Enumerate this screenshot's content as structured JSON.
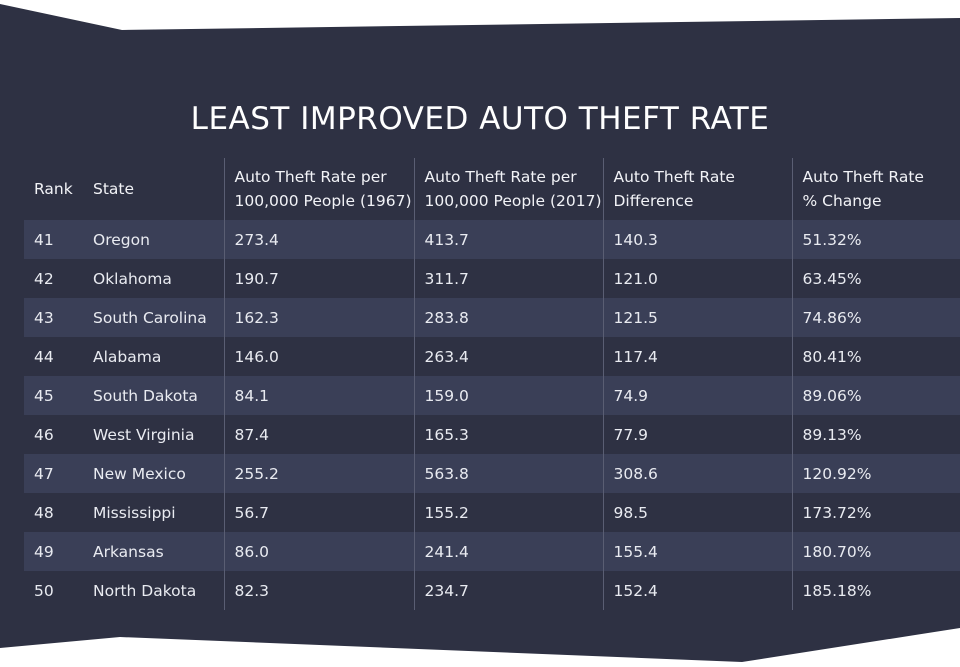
{
  "title": "LEAST IMPROVED AUTO THEFT RATE",
  "colors": {
    "panel": "#2e3143",
    "stripe": "#3a3f57",
    "text": "#ffffff",
    "divider": "#5a5e73"
  },
  "table": {
    "headers": {
      "rank": "Rank",
      "state": "State",
      "rate_1967_line1": "Auto Theft Rate per",
      "rate_1967_line2": "100,000 People (1967)",
      "rate_2017_line1": "Auto Theft Rate per",
      "rate_2017_line2": "100,000 People (2017)",
      "difference_line1": "Auto Theft Rate",
      "difference_line2": "Difference",
      "pct_line1": "Auto Theft Rate",
      "pct_line2": "% Change"
    },
    "rows": [
      {
        "rank": "41",
        "state": "Oregon",
        "rate_1967": "273.4",
        "rate_2017": "413.7",
        "difference": "140.3",
        "pct_change": "51.32%"
      },
      {
        "rank": "42",
        "state": "Oklahoma",
        "rate_1967": "190.7",
        "rate_2017": "311.7",
        "difference": "121.0",
        "pct_change": "63.45%"
      },
      {
        "rank": "43",
        "state": "South Carolina",
        "rate_1967": "162.3",
        "rate_2017": "283.8",
        "difference": "121.5",
        "pct_change": "74.86%"
      },
      {
        "rank": "44",
        "state": "Alabama",
        "rate_1967": "146.0",
        "rate_2017": "263.4",
        "difference": "117.4",
        "pct_change": "80.41%"
      },
      {
        "rank": "45",
        "state": "South Dakota",
        "rate_1967": "84.1",
        "rate_2017": "159.0",
        "difference": "74.9",
        "pct_change": "89.06%"
      },
      {
        "rank": "46",
        "state": "West Virginia",
        "rate_1967": "87.4",
        "rate_2017": "165.3",
        "difference": "77.9",
        "pct_change": "89.13%"
      },
      {
        "rank": "47",
        "state": "New Mexico",
        "rate_1967": "255.2",
        "rate_2017": "563.8",
        "difference": "308.6",
        "pct_change": "120.92%"
      },
      {
        "rank": "48",
        "state": "Mississippi",
        "rate_1967": "56.7",
        "rate_2017": "155.2",
        "difference": "98.5",
        "pct_change": "173.72%"
      },
      {
        "rank": "49",
        "state": "Arkansas",
        "rate_1967": "86.0",
        "rate_2017": "241.4",
        "difference": "155.4",
        "pct_change": "180.70%"
      },
      {
        "rank": "50",
        "state": "North Dakota",
        "rate_1967": "82.3",
        "rate_2017": "234.7",
        "difference": "152.4",
        "pct_change": "185.18%"
      }
    ]
  },
  "chart_data": {
    "type": "table",
    "title": "LEAST IMPROVED AUTO THEFT RATE",
    "columns": [
      "Rank",
      "State",
      "Auto Theft Rate per 100,000 People (1967)",
      "Auto Theft Rate per 100,000 People (2017)",
      "Auto Theft Rate Difference",
      "Auto Theft Rate % Change"
    ],
    "rows": [
      [
        41,
        "Oregon",
        273.4,
        413.7,
        140.3,
        "51.32%"
      ],
      [
        42,
        "Oklahoma",
        190.7,
        311.7,
        121.0,
        "63.45%"
      ],
      [
        43,
        "South Carolina",
        162.3,
        283.8,
        121.5,
        "74.86%"
      ],
      [
        44,
        "Alabama",
        146.0,
        263.4,
        117.4,
        "80.41%"
      ],
      [
        45,
        "South Dakota",
        84.1,
        159.0,
        74.9,
        "89.06%"
      ],
      [
        46,
        "West Virginia",
        87.4,
        165.3,
        77.9,
        "89.13%"
      ],
      [
        47,
        "New Mexico",
        255.2,
        563.8,
        308.6,
        "120.92%"
      ],
      [
        48,
        "Mississippi",
        56.7,
        155.2,
        98.5,
        "173.72%"
      ],
      [
        49,
        "Arkansas",
        86.0,
        241.4,
        155.4,
        "180.70%"
      ],
      [
        50,
        "North Dakota",
        82.3,
        234.7,
        152.4,
        "185.18%"
      ]
    ]
  }
}
